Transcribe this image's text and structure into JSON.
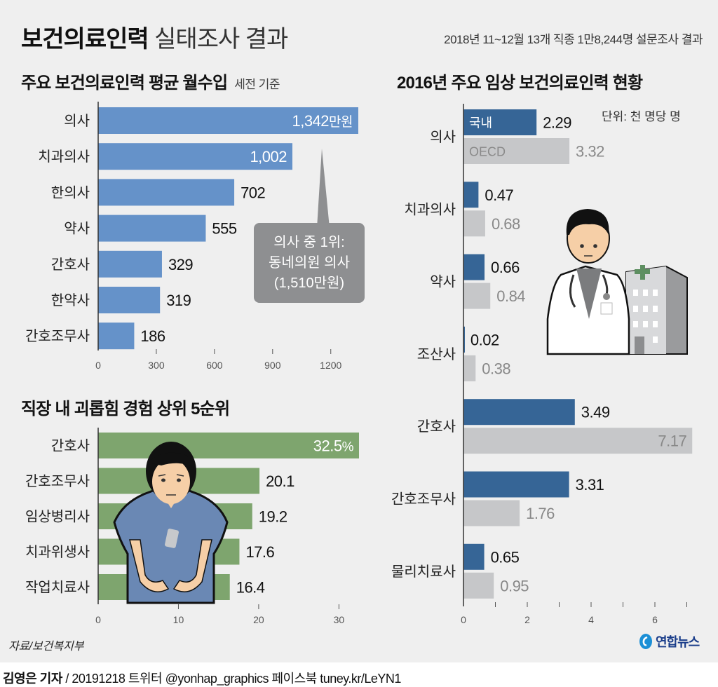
{
  "header": {
    "title_bold": "보건의료인력",
    "title_light": "실태조사 결과",
    "subtitle": "2018년 11~12월 13개 직종 1만8,244명 설문조사 결과"
  },
  "colors": {
    "background": "#efefef",
    "income_bar": "#6592c9",
    "harassment_bar": "#7ea56e",
    "domestic_bar": "#366596",
    "oecd_bar": "#c6c7c9",
    "callout": "#8e8f91",
    "oecd_label": "#888888"
  },
  "chart_data": [
    {
      "type": "bar",
      "orientation": "horizontal",
      "title": "주요 보건의료인력 평균 월수입",
      "title_note": "세전 기준",
      "categories": [
        "의사",
        "치과의사",
        "한의사",
        "약사",
        "간호사",
        "한약사",
        "간호조무사"
      ],
      "values": [
        1342,
        1002,
        702,
        555,
        329,
        319,
        186
      ],
      "value_labels": [
        "1,342",
        "1,002",
        "702",
        "555",
        "329",
        "319",
        "186"
      ],
      "first_label_unit": "만원",
      "xlim": [
        0,
        1342
      ],
      "xticks": [
        0,
        300,
        600,
        900,
        1200
      ],
      "xtick_labels": [
        "0",
        "300",
        "600",
        "900",
        "1200"
      ],
      "annotation": {
        "lines": [
          "의사 중 1위:",
          "동네의원 의사",
          "(1,510만원)"
        ]
      }
    },
    {
      "type": "bar",
      "orientation": "horizontal",
      "title": "직장 내 괴롭힘 경험 상위 5순위",
      "categories": [
        "간호사",
        "간호조무사",
        "임상병리사",
        "치과위생사",
        "작업치료사"
      ],
      "values": [
        32.5,
        20.1,
        19.2,
        17.6,
        16.4
      ],
      "value_labels": [
        "32.5",
        "20.1",
        "19.2",
        "17.6",
        "16.4"
      ],
      "first_label_unit": "%",
      "xlim": [
        0,
        32.5
      ],
      "xticks": [
        0,
        10,
        20,
        30
      ],
      "xtick_labels": [
        "0",
        "10",
        "20",
        "30"
      ]
    },
    {
      "type": "bar",
      "orientation": "horizontal",
      "title": "2016년 주요 임상 보건의료인력 현황",
      "unit": "단위: 천 명당 명",
      "categories": [
        "의사",
        "치과의사",
        "약사",
        "조산사",
        "간호사",
        "간호조무사",
        "물리치료사"
      ],
      "series": [
        {
          "name": "국내",
          "values": [
            2.29,
            0.47,
            0.66,
            0.02,
            3.49,
            3.31,
            0.65
          ],
          "labels": [
            "2.29",
            "0.47",
            "0.66",
            "0.02",
            "3.49",
            "3.31",
            "0.65"
          ]
        },
        {
          "name": "OECD",
          "values": [
            3.32,
            0.68,
            0.84,
            0.38,
            7.17,
            1.76,
            0.95
          ],
          "labels": [
            "3.32",
            "0.68",
            "0.84",
            "0.38",
            "7.17",
            "1.76",
            "0.95"
          ]
        }
      ],
      "xlim": [
        0,
        7.17
      ],
      "xticks": [
        0,
        1,
        2,
        3,
        4,
        5,
        6,
        7
      ],
      "xtick_labels": [
        "0",
        "",
        "2",
        "",
        "4",
        "",
        "6",
        ""
      ]
    }
  ],
  "footer": {
    "source": "자료/보건복지부",
    "reporter": "김영은 기자",
    "byline_rest": " / 20191218  트위터 @yonhap_graphics  페이스북 tuney.kr/LeYN1",
    "logo_text": "연합뉴스"
  }
}
